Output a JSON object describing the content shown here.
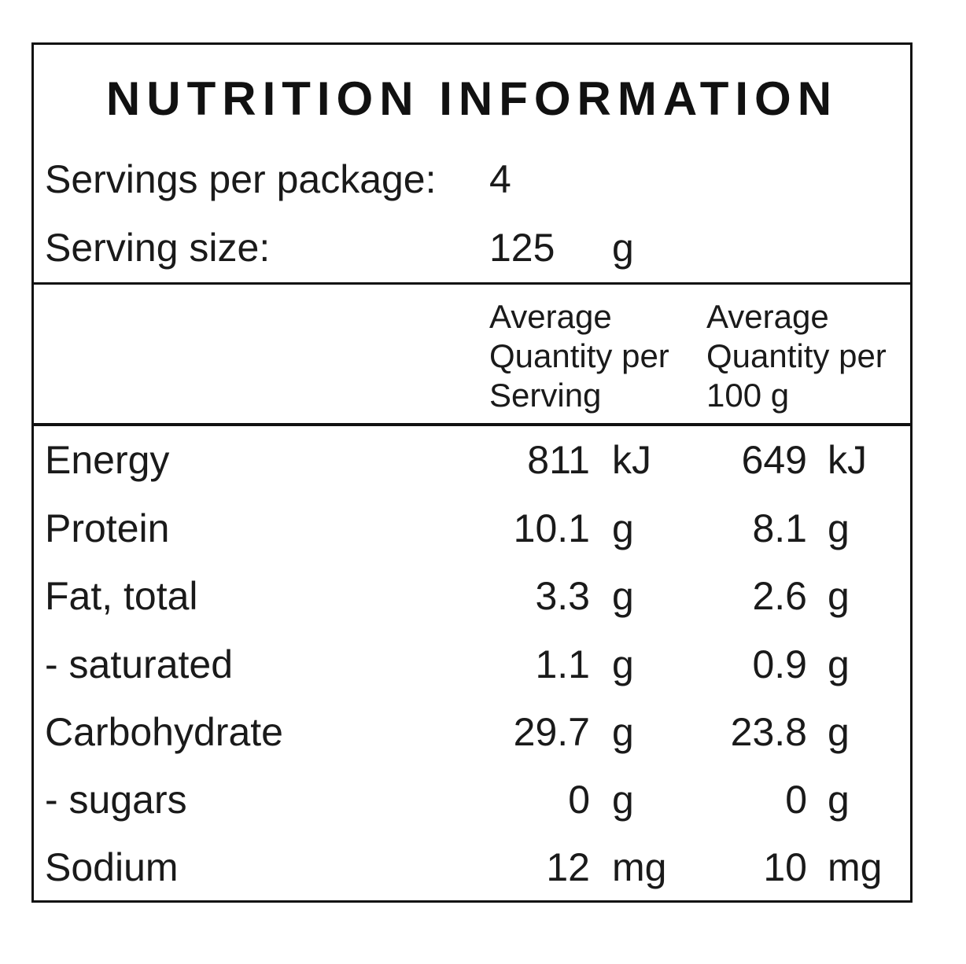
{
  "title": "NUTRITION INFORMATION",
  "servings": {
    "label": "Servings per package:",
    "value": "4"
  },
  "serving_size": {
    "label": "Serving size:",
    "value": "125",
    "unit": "g"
  },
  "columns": {
    "per_serving": [
      "Average",
      "Quantity per",
      "Serving"
    ],
    "per_100g": [
      "Average",
      "Quantity per",
      "100 g"
    ]
  },
  "rows": [
    {
      "name": "Energy",
      "serving": "811",
      "serving_unit": "kJ",
      "per100": "649",
      "per100_unit": "kJ"
    },
    {
      "name": "Protein",
      "serving": "10.1",
      "serving_unit": "g",
      "per100": "8.1",
      "per100_unit": "g"
    },
    {
      "name": "Fat, total",
      "serving": "3.3",
      "serving_unit": "g",
      "per100": "2.6",
      "per100_unit": "g"
    },
    {
      "name": "- saturated",
      "serving": "1.1",
      "serving_unit": "g",
      "per100": "0.9",
      "per100_unit": "g"
    },
    {
      "name": "Carbohydrate",
      "serving": "29.7",
      "serving_unit": "g",
      "per100": "23.8",
      "per100_unit": "g"
    },
    {
      "name": "- sugars",
      "serving": "0",
      "serving_unit": "g",
      "per100": "0",
      "per100_unit": "g"
    },
    {
      "name": "Sodium",
      "serving": "12",
      "serving_unit": "mg",
      "per100": "10",
      "per100_unit": "mg"
    }
  ]
}
